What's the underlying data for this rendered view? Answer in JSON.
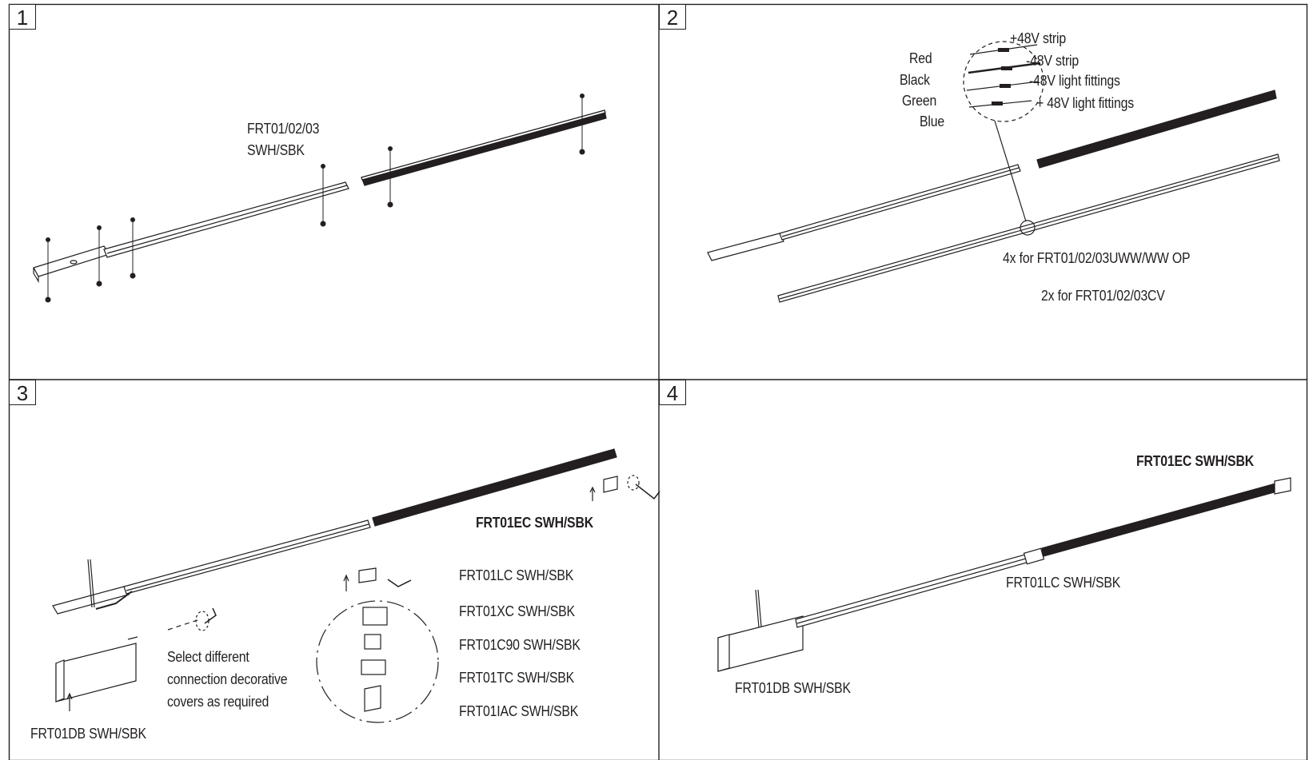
{
  "colors": {
    "line": "#231f20",
    "rail_dark": "#231f20",
    "rail_light": "#ffffff",
    "background": "#ffffff"
  },
  "panels": [
    {
      "step": "1",
      "labels": {
        "product_line1": "FRT01/02/03",
        "product_line2": "SWH/SBK"
      }
    },
    {
      "step": "2",
      "wires": {
        "red": "Red",
        "black": "Black",
        "green": "Green",
        "blue": "Blue",
        "plus_strip": "+48V strip",
        "minus_strip": "-48V strip",
        "minus_fittings": "-48V light fittings",
        "plus_fittings": "+ 48V light fittings"
      },
      "notes": {
        "uww": "4x for FRT01/02/03UWW/WW OP",
        "cv": "2x for FRT01/02/03CV"
      }
    },
    {
      "step": "3",
      "labels": {
        "end_cap": "FRT01EC SWH/SBK",
        "lc": "FRT01LC SWH/SBK",
        "xc": "FRT01XC SWH/SBK",
        "c90": "FRT01C90 SWH/SBK",
        "tc": "FRT01TC SWH/SBK",
        "iac": "FRT01IAC SWH/SBK",
        "db": "FRT01DB SWH/SBK",
        "note_line1": "Select different",
        "note_line2": "connection decorative",
        "note_line3": "covers as required"
      }
    },
    {
      "step": "4",
      "labels": {
        "end_cap": "FRT01EC SWH/SBK",
        "lc": "FRT01LC SWH/SBK",
        "db": "FRT01DB SWH/SBK"
      }
    }
  ]
}
